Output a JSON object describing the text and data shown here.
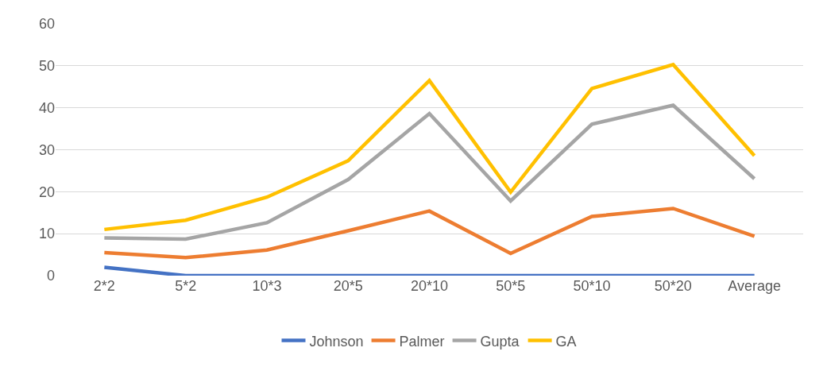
{
  "chart_data": {
    "type": "line",
    "categories": [
      "2*2",
      "5*2",
      "10*3",
      "20*5",
      "20*10",
      "50*5",
      "50*10",
      "50*20",
      "Average"
    ],
    "series": [
      {
        "name": "Johnson",
        "color": "#4472c4",
        "values": [
          2,
          0,
          0,
          0,
          0,
          0,
          0,
          0,
          0
        ]
      },
      {
        "name": "Palmer",
        "color": "#ed7d31",
        "values": [
          5.5,
          4.3,
          6.1,
          10.7,
          15.4,
          5.3,
          14.1,
          16.0,
          9.4
        ]
      },
      {
        "name": "Gupta",
        "color": "#a5a5a5",
        "values": [
          9.0,
          8.7,
          12.6,
          22.9,
          38.6,
          17.8,
          36.1,
          40.6,
          23.1
        ]
      },
      {
        "name": "GA",
        "color": "#ffc000",
        "values": [
          11.0,
          13.2,
          18.7,
          27.4,
          46.5,
          19.9,
          44.6,
          50.3,
          28.6
        ]
      }
    ],
    "ylim": [
      0,
      60
    ],
    "yticks": [
      0,
      10,
      20,
      30,
      40,
      50,
      60
    ],
    "grid": "y",
    "legend": "bottom",
    "marker": "none",
    "line_style": "solid"
  }
}
